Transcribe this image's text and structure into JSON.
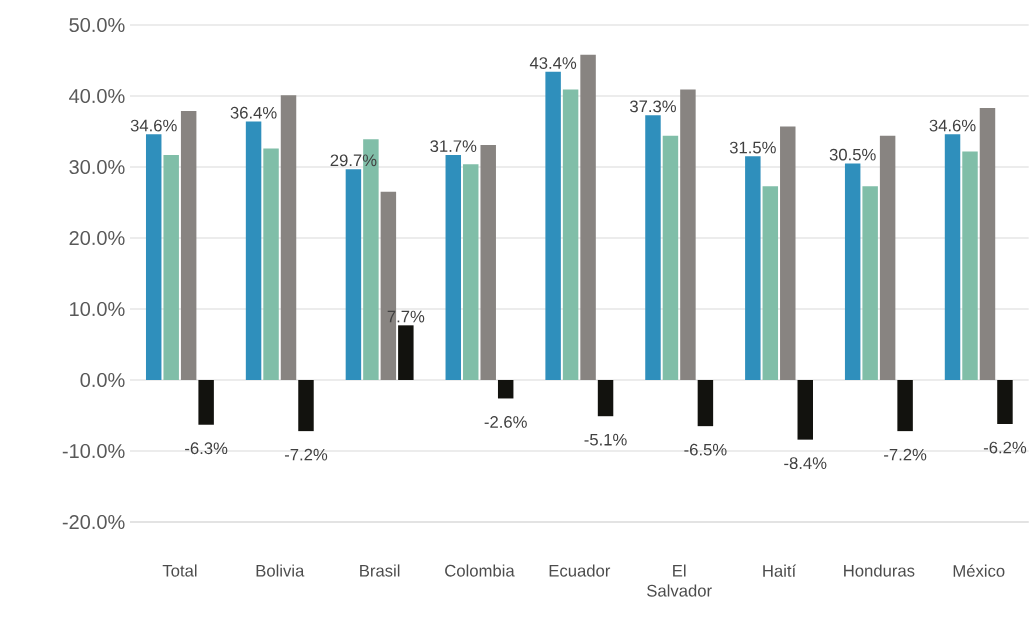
{
  "chart_data": {
    "type": "bar",
    "categories": [
      "Total",
      "Bolivia",
      "Brasil",
      "Colombia",
      "Ecuador",
      "El Salvador",
      "Haití",
      "Honduras",
      "México"
    ],
    "series": [
      {
        "color": "#2f8fbc",
        "values": [
          34.6,
          36.4,
          29.7,
          31.7,
          43.4,
          37.3,
          31.5,
          30.5,
          34.6
        ],
        "value_labels": [
          "34.6%",
          "36.4%",
          "29.7%",
          "31.7%",
          "43.4%",
          "37.3%",
          "31.5%",
          "30.5%",
          "34.6%"
        ]
      },
      {
        "color": "#80bea8",
        "values": [
          31.7,
          32.6,
          33.9,
          30.4,
          40.9,
          34.4,
          27.3,
          27.3,
          32.2
        ]
      },
      {
        "color": "#888481",
        "values": [
          37.9,
          40.1,
          26.5,
          33.1,
          45.8,
          40.9,
          35.7,
          34.4,
          38.3
        ]
      },
      {
        "color": "#12120e",
        "values": [
          -6.3,
          -7.2,
          7.7,
          -2.6,
          -5.1,
          -6.5,
          -8.4,
          -7.2,
          -6.2
        ],
        "value_labels": [
          "-6.3%",
          "-7.2%",
          "7.7%",
          "-2.6%",
          "-5.1%",
          "-6.5%",
          "-8.4%",
          "-7.2%",
          "-6.2%"
        ]
      }
    ],
    "ylim": [
      -20,
      50
    ],
    "yticks": [
      {
        "value": -20,
        "label": "-20.0%"
      },
      {
        "value": -10,
        "label": "-10.0%"
      },
      {
        "value": 0,
        "label": "0.0%"
      },
      {
        "value": 10,
        "label": "10.0%"
      },
      {
        "value": 20,
        "label": "20.0%"
      },
      {
        "value": 30,
        "label": "30.0%"
      },
      {
        "value": 40,
        "label": "40.0%"
      },
      {
        "value": 50,
        "label": "50.0%"
      }
    ],
    "grid": "y"
  }
}
